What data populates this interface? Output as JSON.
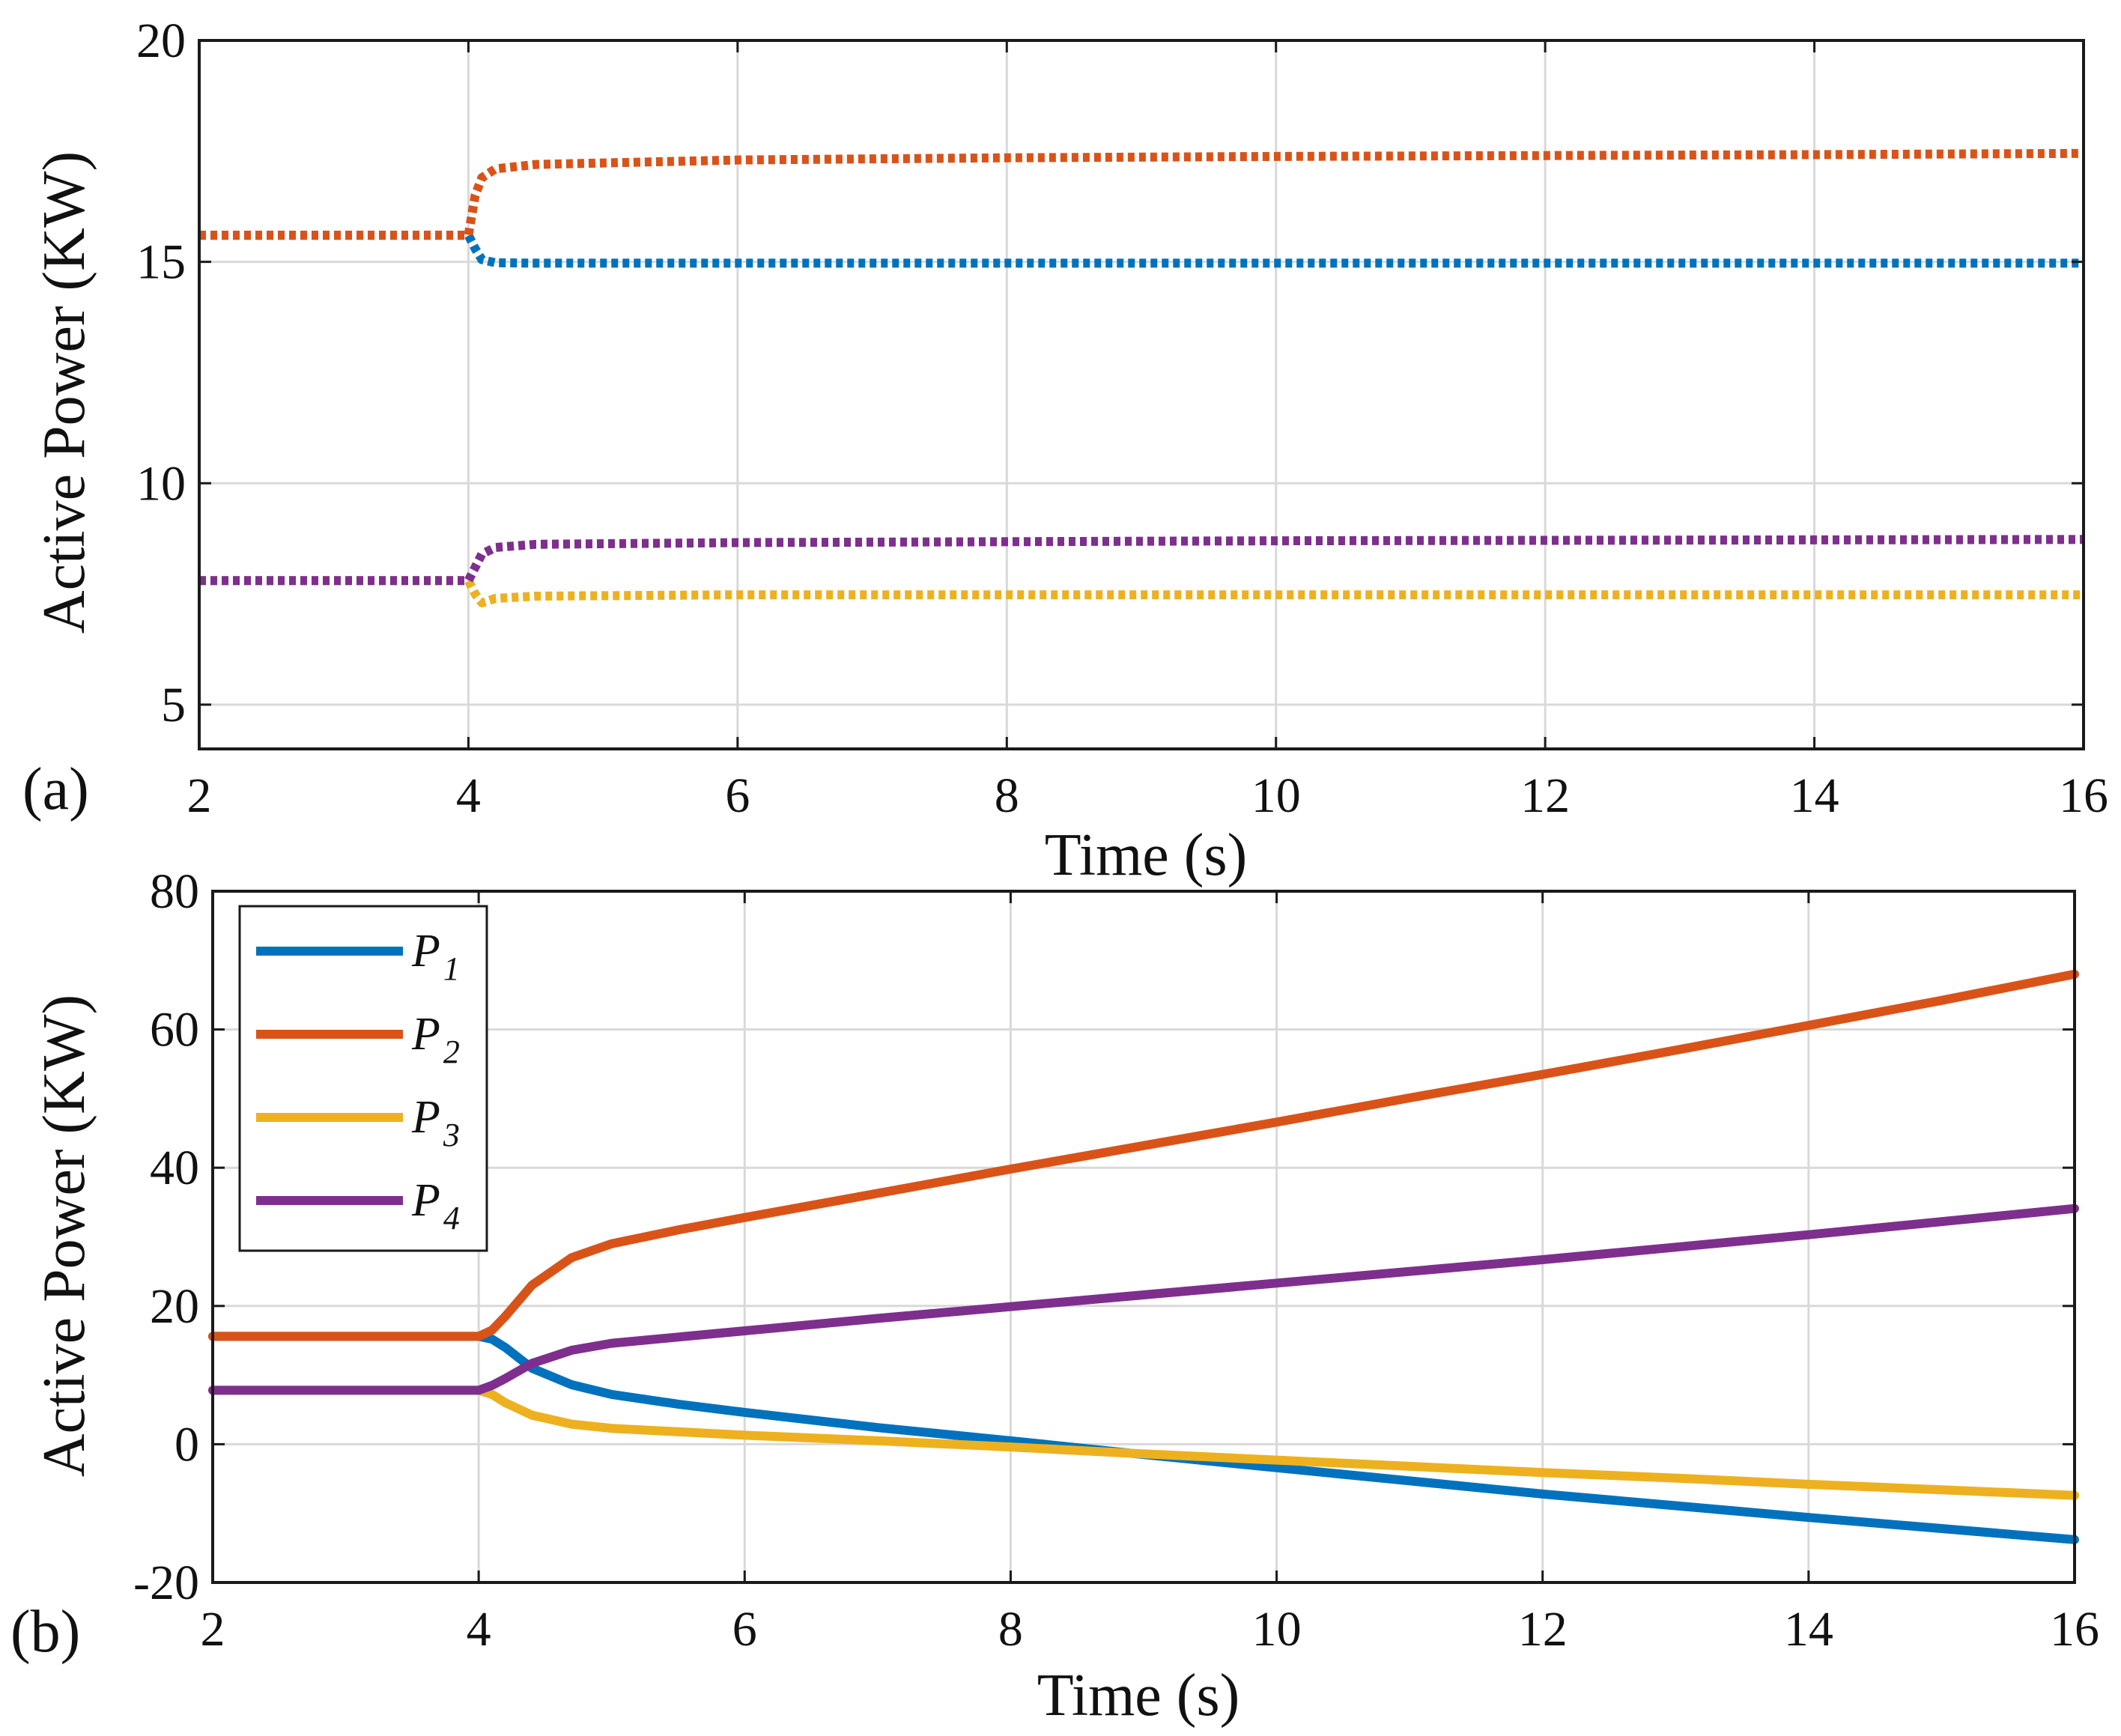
{
  "chart_data": [
    {
      "type": "line",
      "panel_label": "(a)",
      "xlabel": "Time (s)",
      "ylabel": "Active Power (KW)",
      "xlim": [
        2,
        16
      ],
      "ylim": [
        4,
        20
      ],
      "xticks": [
        2,
        4,
        6,
        8,
        10,
        12,
        14,
        16
      ],
      "yticks": [
        5,
        10,
        15,
        20
      ],
      "grid": true,
      "line_style": "dotted",
      "series": [
        {
          "name": "P1",
          "color": "#0072BD",
          "x": [
            2,
            4.0,
            4.05,
            4.1,
            4.2,
            4.5,
            6,
            8,
            10,
            12,
            14,
            16
          ],
          "y": [
            15.6,
            15.6,
            15.3,
            15.05,
            14.98,
            14.97,
            14.97,
            14.97,
            14.97,
            14.97,
            14.97,
            14.97
          ]
        },
        {
          "name": "P2",
          "color": "#D95319",
          "x": [
            2,
            4.0,
            4.05,
            4.1,
            4.2,
            4.5,
            6,
            8,
            10,
            12,
            14,
            16
          ],
          "y": [
            15.6,
            15.6,
            16.5,
            16.9,
            17.1,
            17.2,
            17.3,
            17.35,
            17.38,
            17.4,
            17.42,
            17.45
          ]
        },
        {
          "name": "P3",
          "color": "#EDB120",
          "x": [
            2,
            4.0,
            4.05,
            4.1,
            4.2,
            4.5,
            6,
            8,
            10,
            12,
            14,
            16
          ],
          "y": [
            7.8,
            7.8,
            7.5,
            7.3,
            7.4,
            7.45,
            7.48,
            7.48,
            7.48,
            7.48,
            7.48,
            7.48
          ]
        },
        {
          "name": "P4",
          "color": "#7E2F8E",
          "x": [
            2,
            4.0,
            4.05,
            4.1,
            4.2,
            4.5,
            6,
            8,
            10,
            12,
            14,
            16
          ],
          "y": [
            7.8,
            7.8,
            8.1,
            8.4,
            8.55,
            8.62,
            8.66,
            8.68,
            8.7,
            8.71,
            8.72,
            8.73
          ]
        }
      ]
    },
    {
      "type": "line",
      "panel_label": "(b)",
      "xlabel": "Time (s)",
      "ylabel": "Active Power (KW)",
      "xlim": [
        2,
        16
      ],
      "ylim": [
        -20,
        80
      ],
      "xticks": [
        2,
        4,
        6,
        8,
        10,
        12,
        14,
        16
      ],
      "yticks": [
        -20,
        0,
        20,
        40,
        60,
        80
      ],
      "grid": true,
      "line_style": "solid",
      "legend": {
        "position": "top-left"
      },
      "series": [
        {
          "name": "P1",
          "label_main": "P",
          "label_sub": "1",
          "color": "#0072BD",
          "x": [
            2,
            4.0,
            4.1,
            4.2,
            4.4,
            4.7,
            5,
            5.5,
            6,
            7,
            8,
            9,
            10,
            11,
            12,
            13,
            14,
            15,
            16
          ],
          "y": [
            15.6,
            15.6,
            15.2,
            14,
            11,
            8.6,
            7.2,
            5.8,
            4.6,
            2.4,
            0.5,
            -1.5,
            -3.4,
            -5.3,
            -7.2,
            -8.9,
            -10.6,
            -12.2,
            -13.8
          ]
        },
        {
          "name": "P2",
          "label_main": "P",
          "label_sub": "2",
          "color": "#D95319",
          "x": [
            2,
            4.0,
            4.1,
            4.2,
            4.4,
            4.7,
            5,
            5.5,
            6,
            7,
            8,
            9,
            10,
            11,
            12,
            13,
            14,
            15,
            16
          ],
          "y": [
            15.6,
            15.6,
            16.5,
            18.5,
            23,
            27,
            29,
            31,
            32.8,
            36.3,
            39.8,
            43.2,
            46.6,
            50.1,
            53.5,
            57,
            60.6,
            64.2,
            68
          ]
        },
        {
          "name": "P3",
          "label_main": "P",
          "label_sub": "3",
          "color": "#EDB120",
          "x": [
            2,
            4.0,
            4.1,
            4.2,
            4.4,
            4.7,
            5,
            5.5,
            6,
            7,
            8,
            9,
            10,
            11,
            12,
            13,
            14,
            15,
            16
          ],
          "y": [
            7.8,
            7.8,
            7.2,
            6,
            4.2,
            2.9,
            2.3,
            1.8,
            1.3,
            0.5,
            -0.4,
            -1.4,
            -2.3,
            -3.2,
            -4.1,
            -4.9,
            -5.8,
            -6.6,
            -7.4
          ]
        },
        {
          "name": "P4",
          "label_main": "P",
          "label_sub": "4",
          "color": "#7E2F8E",
          "x": [
            2,
            4.0,
            4.1,
            4.2,
            4.4,
            4.7,
            5,
            5.5,
            6,
            7,
            8,
            9,
            10,
            11,
            12,
            13,
            14,
            15,
            16
          ],
          "y": [
            7.8,
            7.8,
            8.5,
            9.5,
            11.7,
            13.6,
            14.6,
            15.5,
            16.4,
            18.2,
            19.9,
            21.6,
            23.3,
            25.0,
            26.7,
            28.5,
            30.3,
            32.2,
            34.1
          ]
        }
      ]
    }
  ]
}
